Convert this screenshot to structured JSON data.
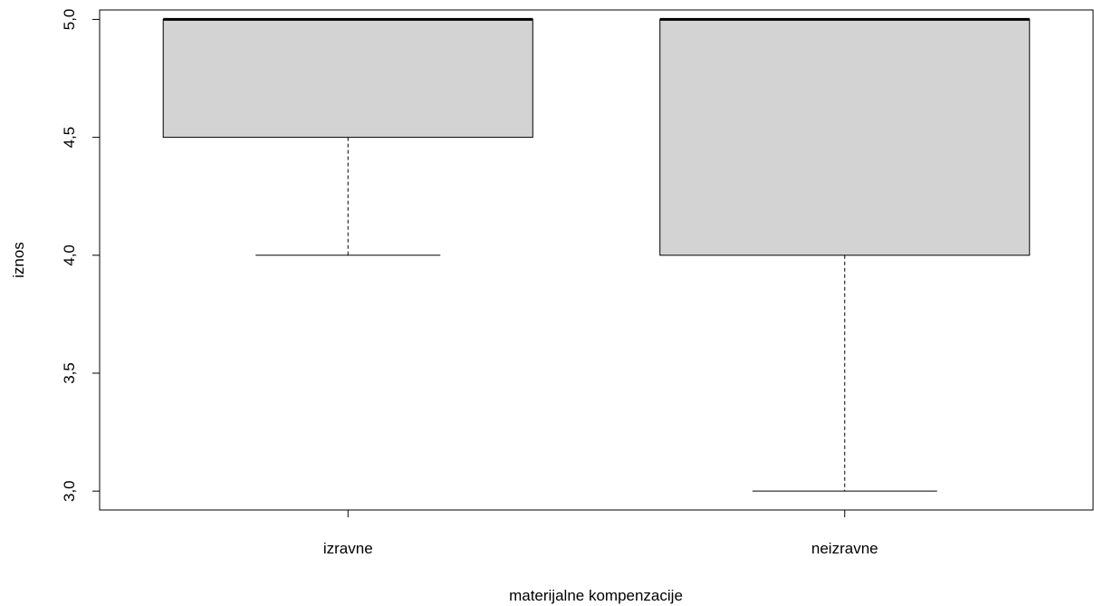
{
  "chart_data": {
    "type": "boxplot",
    "title": "",
    "xlabel": "materijalne kompenzacije",
    "ylabel": "iznos",
    "ylim": [
      2.92,
      5.04
    ],
    "y_ticks": [
      3.0,
      3.5,
      4.0,
      4.5,
      5.0
    ],
    "y_tick_labels": [
      "3,0",
      "3,5",
      "4,0",
      "4,5",
      "5,0"
    ],
    "categories": [
      "izravne",
      "neizravne"
    ],
    "boxes": [
      {
        "category": "izravne",
        "whisker_low": 4.0,
        "q1": 4.5,
        "median": 5.0,
        "q3": 5.0,
        "whisker_high": 5.0
      },
      {
        "category": "neizravne",
        "whisker_low": 3.0,
        "q1": 4.0,
        "median": 5.0,
        "q3": 5.0,
        "whisker_high": 5.0
      }
    ],
    "box_fill": "#d3d3d3",
    "line_color": "#000000",
    "grid": false,
    "legend": "none"
  }
}
